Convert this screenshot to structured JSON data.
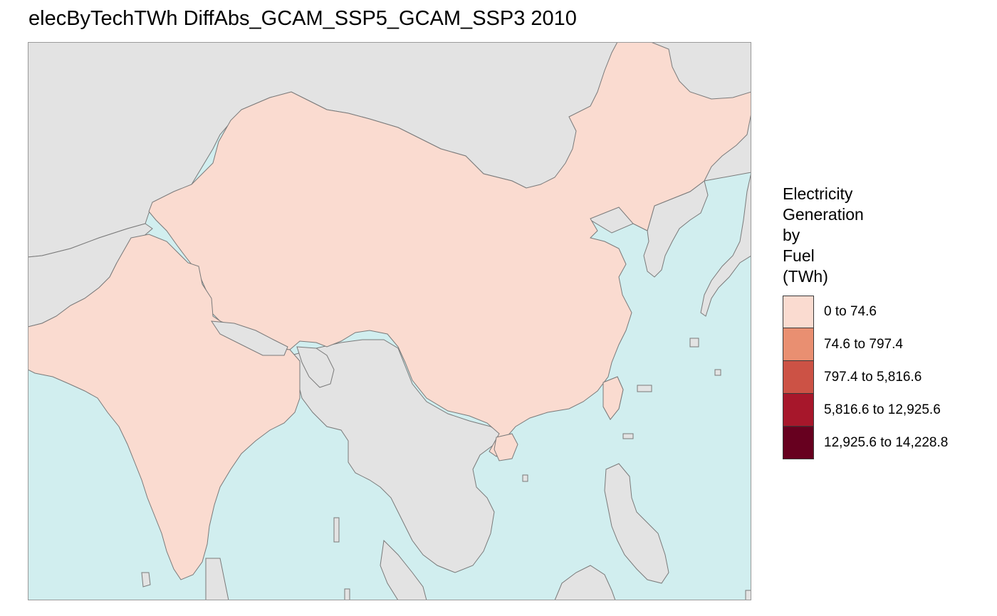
{
  "title": "elecByTechTWh DiffAbs_GCAM_SSP5_GCAM_SSP3 2010",
  "legend": {
    "title_lines": [
      "Electricity",
      "Generation",
      "by",
      "Fuel",
      "(TWh)"
    ],
    "items": [
      {
        "label": "0 to 74.6",
        "color": "#fadbd0"
      },
      {
        "label": "74.6 to 797.4",
        "color": "#e98f71"
      },
      {
        "label": "797.4 to 5,816.6",
        "color": "#cc5245"
      },
      {
        "label": "5,816.6 to 12,925.6",
        "color": "#a7172b"
      },
      {
        "label": "12,925.6 to 14,228.8",
        "color": "#67001f"
      }
    ]
  },
  "map": {
    "colors": {
      "ocean": "#d1eeef",
      "land_no_data": "#e3e3e3",
      "border": "#7a7a7a",
      "frame": "#9a9a9a"
    },
    "highlighted_region_class": "0 to 74.6"
  }
}
